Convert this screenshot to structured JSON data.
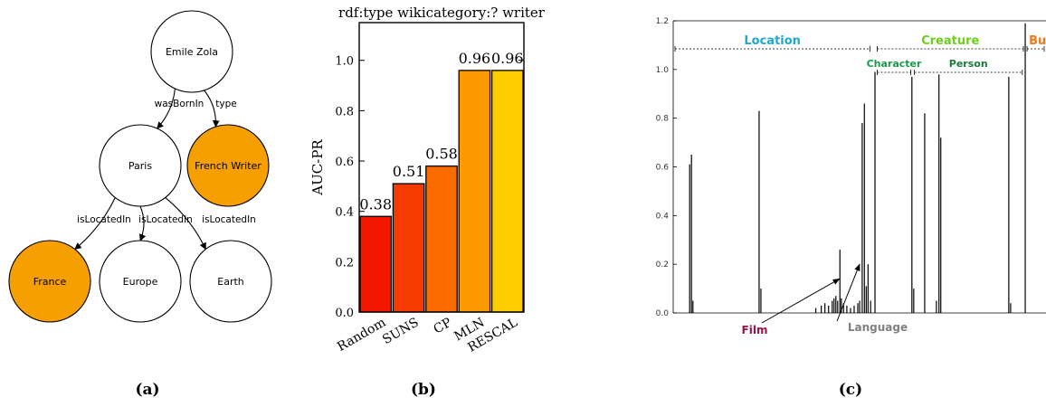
{
  "panel_a": {
    "label": "(a)",
    "nodes": [
      {
        "id": "zola",
        "label": "Emile Zola",
        "highlight": false
      },
      {
        "id": "paris",
        "label": "Paris",
        "highlight": false
      },
      {
        "id": "writer",
        "label": "French Writer",
        "highlight": true
      },
      {
        "id": "france",
        "label": "France",
        "highlight": true
      },
      {
        "id": "europe",
        "label": "Europe",
        "highlight": false
      },
      {
        "id": "earth",
        "label": "Earth",
        "highlight": false
      }
    ],
    "edges": [
      {
        "from": "zola",
        "to": "paris",
        "label": "wasBornIn"
      },
      {
        "from": "zola",
        "to": "writer",
        "label": "type"
      },
      {
        "from": "paris",
        "to": "france",
        "label": "isLocatedIn"
      },
      {
        "from": "paris",
        "to": "europe",
        "label": "isLocatedIn"
      },
      {
        "from": "paris",
        "to": "earth",
        "label": "isLocatedIn"
      }
    ],
    "highlight_color": "#f5a000"
  },
  "panel_b": {
    "label": "(b)",
    "chart_data": {
      "type": "bar",
      "title": "rdf:type wikicategory:? writer",
      "ylabel": "AUC-PR",
      "categories": [
        "Random",
        "SUNS",
        "CP",
        "MLN",
        "RESCAL"
      ],
      "values": [
        0.38,
        0.51,
        0.58,
        0.96,
        0.96
      ],
      "value_labels": [
        "0.38",
        "0.51",
        "0.58",
        "0.96",
        "0.96"
      ],
      "colors": [
        "#f21800",
        "#f53c00",
        "#fb6c00",
        "#ff9900",
        "#ffcc00"
      ],
      "ylim": [
        0,
        1.15
      ],
      "yticks": [
        0.0,
        0.2,
        0.4,
        0.6,
        0.8,
        1.0
      ],
      "ytick_labels": [
        "0.0",
        "0.2",
        "0.4",
        "0.6",
        "0.8",
        "1.0"
      ]
    }
  },
  "panel_c": {
    "label": "(c)",
    "chart_data": {
      "type": "bar",
      "ylim": [
        0,
        1.2
      ],
      "yticks": [
        0.0,
        0.2,
        0.4,
        0.6,
        0.8,
        1.0,
        1.2
      ],
      "ytick_labels": [
        "0.0",
        "0.2",
        "0.4",
        "0.6",
        "0.8",
        "1.0",
        "1.2"
      ],
      "xlim": [
        0,
        100
      ],
      "spikes": [
        {
          "x": 4.5,
          "y": 0.61
        },
        {
          "x": 5.0,
          "y": 0.65
        },
        {
          "x": 5.4,
          "y": 0.05
        },
        {
          "x": 23.5,
          "y": 0.83
        },
        {
          "x": 24.0,
          "y": 0.1
        },
        {
          "x": 39.0,
          "y": 0.02
        },
        {
          "x": 40.5,
          "y": 0.03
        },
        {
          "x": 41.5,
          "y": 0.04
        },
        {
          "x": 42.5,
          "y": 0.03
        },
        {
          "x": 43.5,
          "y": 0.05
        },
        {
          "x": 44.0,
          "y": 0.06
        },
        {
          "x": 44.5,
          "y": 0.07
        },
        {
          "x": 45.0,
          "y": 0.05
        },
        {
          "x": 45.6,
          "y": 0.26
        },
        {
          "x": 46.0,
          "y": 0.06
        },
        {
          "x": 46.6,
          "y": 0.04
        },
        {
          "x": 47.5,
          "y": 0.03
        },
        {
          "x": 48.5,
          "y": 0.02
        },
        {
          "x": 49.5,
          "y": 0.03
        },
        {
          "x": 50.5,
          "y": 0.04
        },
        {
          "x": 51.0,
          "y": 0.05
        },
        {
          "x": 51.7,
          "y": 0.78
        },
        {
          "x": 52.3,
          "y": 0.86
        },
        {
          "x": 52.8,
          "y": 0.11
        },
        {
          "x": 53.3,
          "y": 0.2
        },
        {
          "x": 54.0,
          "y": 0.05
        },
        {
          "x": 55.2,
          "y": 0.99
        },
        {
          "x": 65.3,
          "y": 0.97
        },
        {
          "x": 65.8,
          "y": 0.1
        },
        {
          "x": 68.8,
          "y": 0.82
        },
        {
          "x": 72.0,
          "y": 0.05
        },
        {
          "x": 72.7,
          "y": 0.98
        },
        {
          "x": 73.2,
          "y": 0.72
        },
        {
          "x": 91.8,
          "y": 0.97
        },
        {
          "x": 92.3,
          "y": 0.04
        },
        {
          "x": 96.3,
          "y": 1.19
        }
      ],
      "groups": [
        {
          "label": "Location",
          "color": "#1fa8d0",
          "from": 0.5,
          "to": 53.8,
          "level": "top"
        },
        {
          "label": "Creature",
          "color": "#6ccf1a",
          "from": 55.8,
          "to": 95.8,
          "level": "top"
        },
        {
          "label": "Budget",
          "color": "#f07a1a",
          "from": 96.8,
          "to": 104,
          "level": "top"
        },
        {
          "label": "Character",
          "color": "#1a9a4a",
          "from": 55.8,
          "to": 65.0,
          "level": "sub"
        },
        {
          "label": "Person",
          "color": "#1a7a3a",
          "from": 66.0,
          "to": 95.5,
          "level": "sub"
        }
      ],
      "annotations": [
        {
          "label": "Film",
          "color": "#a0124a",
          "target_x": 45.5,
          "target_y": 0.14
        },
        {
          "label": "Language",
          "color": "#808080",
          "target_x": 51.0,
          "target_y": 0.2
        }
      ]
    }
  }
}
